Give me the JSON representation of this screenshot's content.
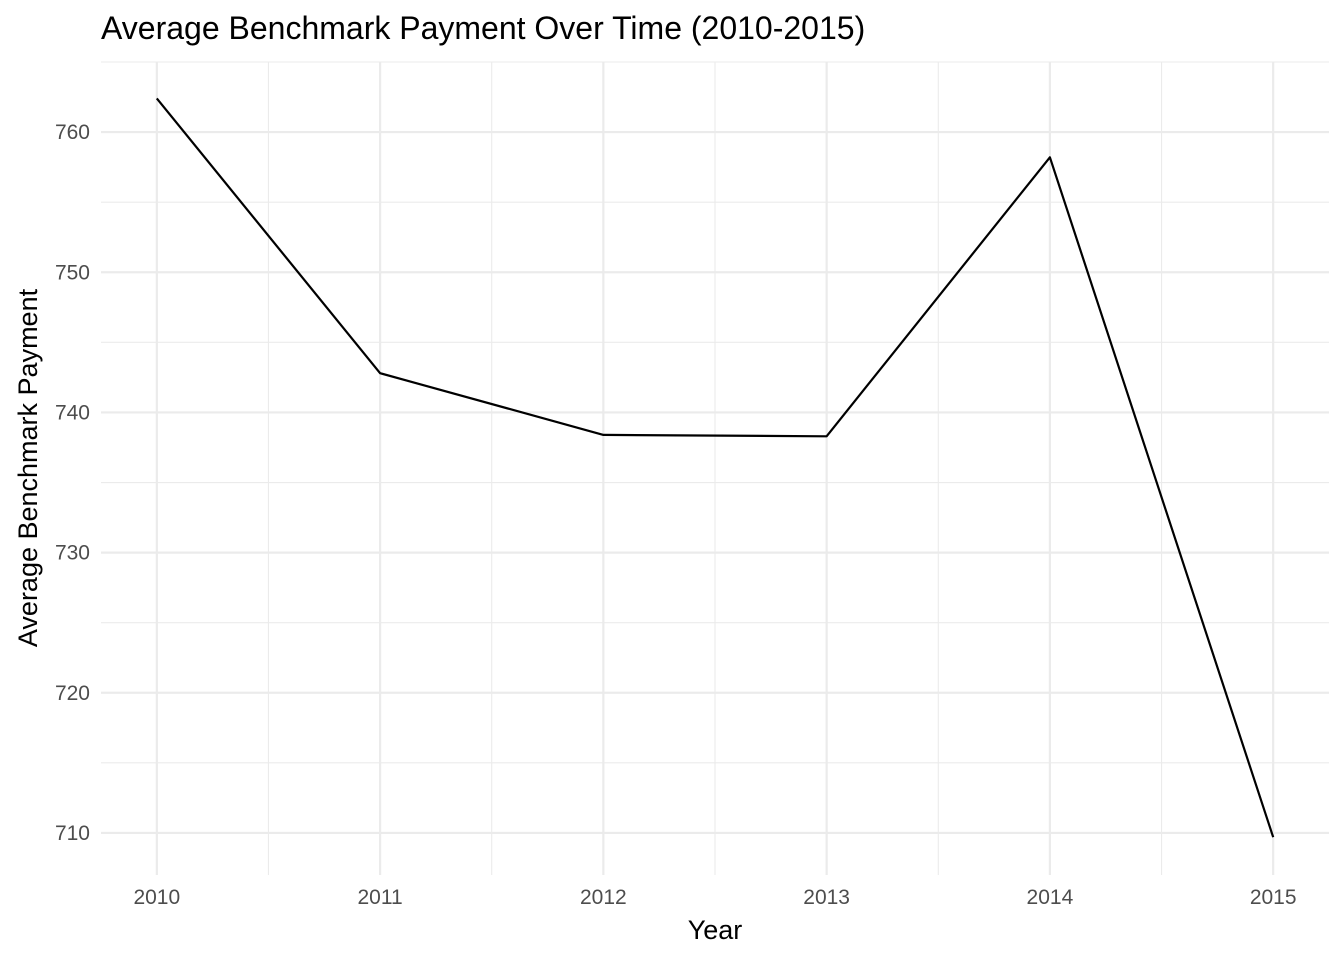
{
  "chart_data": {
    "type": "line",
    "title": "Average Benchmark Payment Over Time (2010-2015)",
    "xlabel": "Year",
    "ylabel": "Average Benchmark Payment",
    "x": [
      2010,
      2011,
      2012,
      2013,
      2014,
      2015
    ],
    "x_tick_labels": [
      "2010",
      "2011",
      "2012",
      "2013",
      "2014",
      "2015"
    ],
    "y_ticks": [
      710,
      720,
      730,
      740,
      750,
      760
    ],
    "y_tick_labels": [
      "710",
      "720",
      "730",
      "740",
      "750",
      "760"
    ],
    "series": [
      {
        "values": [
          762.4,
          742.8,
          738.4,
          738.3,
          758.2,
          709.7
        ],
        "color": "#000000"
      }
    ],
    "xlim": [
      2009.75,
      2015.25
    ],
    "ylim": [
      707,
      765
    ],
    "grid": true,
    "legend": "none",
    "colors": {
      "background": "#ffffff",
      "grid": "#ebebeb",
      "tick_text": "#4d4d4d",
      "text": "#000000"
    }
  }
}
